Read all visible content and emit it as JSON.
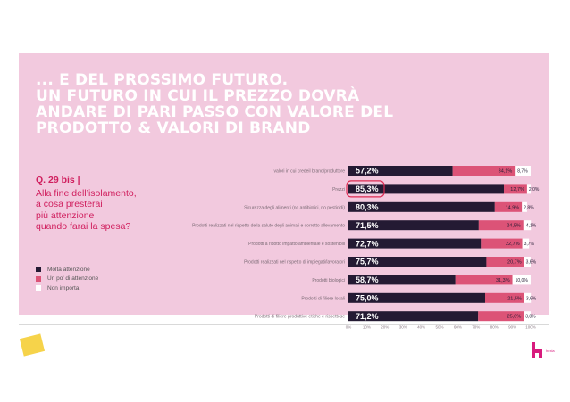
{
  "slide": {
    "title_lines": [
      "... E DEL PROSSIMO FUTURO.",
      "UN FUTURO IN CUI IL PREZZO DOVRÀ",
      "ANDARE DI PARI PASSO CON VALORE DEL",
      "PRODOTTO & VALORI DI BRAND"
    ],
    "question_code": "Q. 29 bis |",
    "question_lines": [
      "Alla fine dell’isolamento,",
      "a cosa presterai",
      "più attenzione",
      "quando farai la spesa?"
    ],
    "logo_text": "",
    "brand_text": "hexia"
  },
  "colors": {
    "molta": "#241a33",
    "un_po": "#dc5377",
    "non_importa": "#ffffff",
    "highlight": "#dc2b52",
    "slide_bg": "#f2c9de",
    "title": "#ffffff",
    "question": "#d01f5e"
  },
  "chart_data": {
    "type": "bar",
    "orientation": "horizontal",
    "stacked": true,
    "categories": [
      "I valori in cui credeil brand/produttore",
      "Prezzi",
      "Sicurezza degli alimenti (no antibiotici, no pesticidi)",
      "Prodotti realizzati nel rispetto della salute degli animali e corretto allevamento",
      "Prodotti a ridotto impatto ambientale e sostenibili",
      "Prodotti realizzati nel rispetto di impiegati/lavoratori",
      "Prodotti biologici",
      "Prodotti di filiere locali",
      "Prodotti di filiere produttive etiche e rispettose"
    ],
    "series": [
      {
        "name": "Molta attenzione",
        "values": [
          57.2,
          85.3,
          80.3,
          71.5,
          72.7,
          75.7,
          58.7,
          75.0,
          71.2
        ],
        "labels": [
          "57,2%",
          "85,3%",
          "80,3%",
          "71,5%",
          "72,7%",
          "75,7%",
          "58,7%",
          "75,0%",
          "71,2%"
        ]
      },
      {
        "name": "Un po' di attenzione",
        "values": [
          34.1,
          12.7,
          14.9,
          24.5,
          22.7,
          20.7,
          31.3,
          21.5,
          25.0
        ],
        "labels": [
          "34,1%",
          "12,7%",
          "14,9%",
          "24,5%",
          "22,7%",
          "20,7%",
          "31,3%",
          "21,5%",
          "25,0%"
        ]
      },
      {
        "name": "Non importa",
        "values": [
          8.7,
          2.0,
          2.8,
          4.1,
          3.7,
          3.6,
          10.0,
          3.6,
          3.8
        ],
        "labels": [
          "8,7%",
          "2,0%",
          "2,8%",
          "4,1%",
          "3,7%",
          "3,6%",
          "10,0%",
          "3,6%",
          "3,8%"
        ]
      }
    ],
    "xlim": [
      0,
      100
    ],
    "xticks": [
      "0%",
      "10%",
      "20%",
      "30%",
      "40%",
      "50%",
      "60%",
      "70%",
      "80%",
      "90%",
      "100%"
    ],
    "highlighted_category": "Prezzi",
    "legend": "left",
    "grid": false
  }
}
